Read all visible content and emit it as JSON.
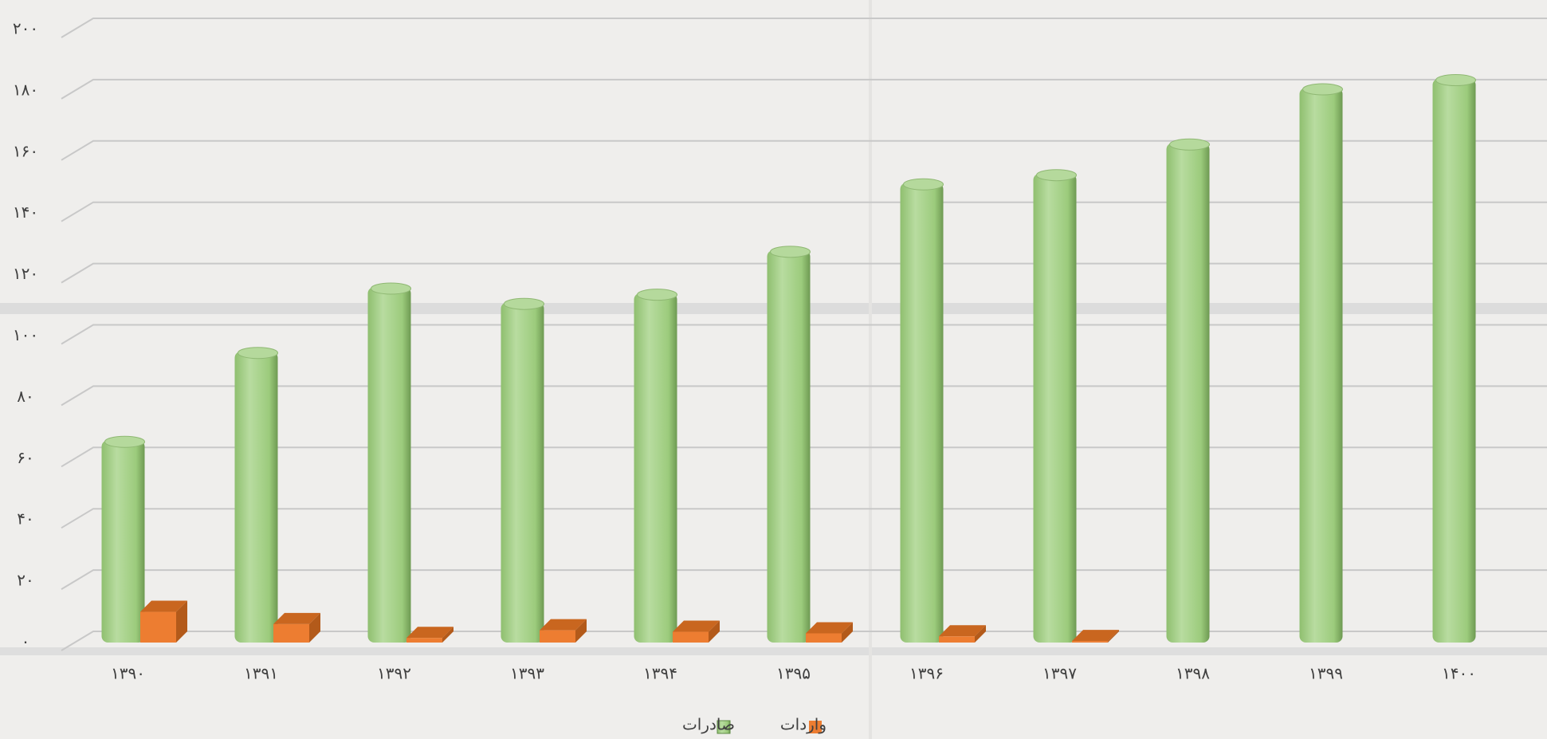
{
  "chart_data": {
    "type": "bar",
    "categories": [
      "۱۳۹۰",
      "۱۳۹۱",
      "۱۳۹۲",
      "۱۳۹۳",
      "۱۳۹۴",
      "۱۳۹۵",
      "۱۳۹۶",
      "۱۳۹۷",
      "۱۳۹۸",
      "۱۳۹۹",
      "۱۴۰۰"
    ],
    "series": [
      {
        "name": "صادرات",
        "color": "#a9d18e",
        "values": [
          66,
          95,
          116,
          111,
          114,
          128,
          150,
          153,
          163,
          181,
          184
        ]
      },
      {
        "name": "واردات",
        "color": "#ed7d31",
        "values": [
          10,
          6,
          1.5,
          4,
          3.5,
          3,
          2,
          0.5,
          null,
          null,
          null
        ]
      }
    ],
    "ylim": [
      0,
      200
    ],
    "yticks": [
      {
        "value": 0,
        "label": "۰"
      },
      {
        "value": 20,
        "label": "۲۰"
      },
      {
        "value": 40,
        "label": "۴۰"
      },
      {
        "value": 60,
        "label": "۶۰"
      },
      {
        "value": 80,
        "label": "۸۰"
      },
      {
        "value": 100,
        "label": "۱۰۰"
      },
      {
        "value": 120,
        "label": "۱۲۰"
      },
      {
        "value": 140,
        "label": "۱۴۰"
      },
      {
        "value": 160,
        "label": "۱۶۰"
      },
      {
        "value": 180,
        "label": "۱۸۰"
      },
      {
        "value": 200,
        "label": "۲۰۰"
      }
    ],
    "grid": true,
    "legend": "bottom"
  }
}
